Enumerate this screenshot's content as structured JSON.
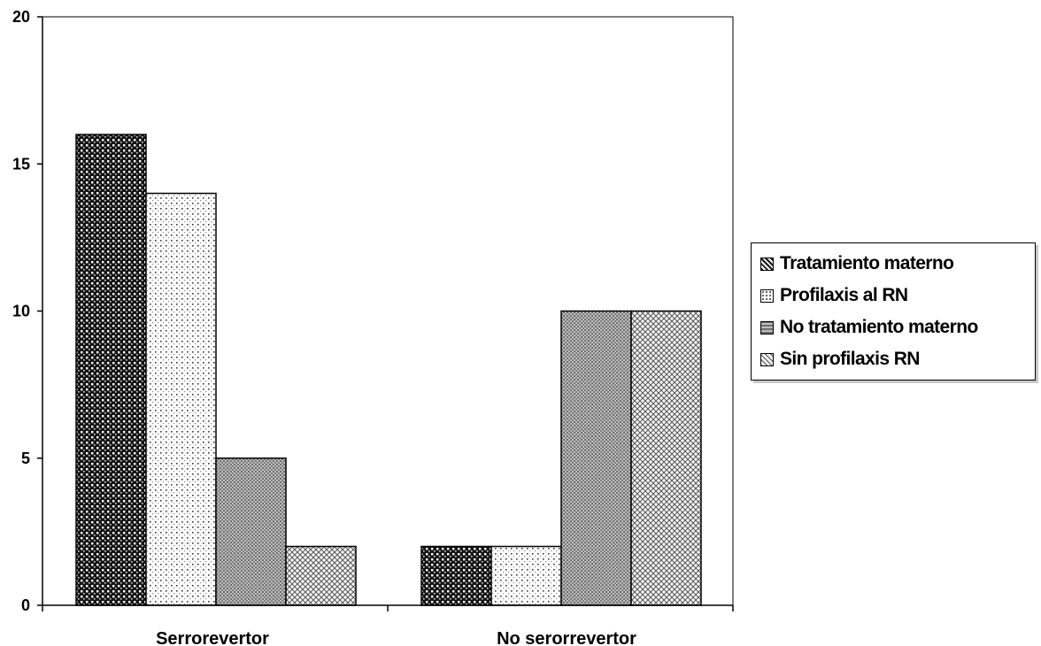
{
  "chart_data": {
    "type": "bar",
    "categories": [
      "Serrorevertor",
      "No serorrevertor"
    ],
    "series": [
      {
        "name": "Tratamiento materno",
        "values": [
          16,
          2
        ],
        "pattern": "dense-dots"
      },
      {
        "name": "Profilaxis al RN",
        "values": [
          14,
          2
        ],
        "pattern": "sparse-dots"
      },
      {
        "name": "No tratamiento materno",
        "values": [
          5,
          10
        ],
        "pattern": "fine-grid"
      },
      {
        "name": "Sin profilaxis RN",
        "values": [
          2,
          10
        ],
        "pattern": "crosshatch"
      }
    ],
    "ylim": [
      0,
      20
    ],
    "yticks": [
      "0",
      "5",
      "10",
      "15",
      "20"
    ],
    "grid": false,
    "legend_position": "right"
  }
}
